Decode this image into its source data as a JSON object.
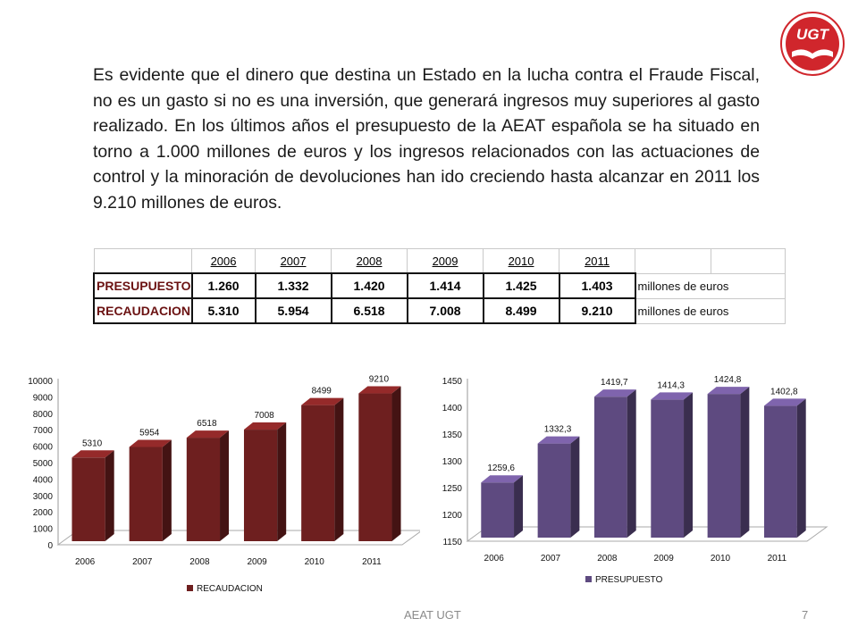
{
  "paragraph": "Es evidente que el dinero que destina un Estado en la lucha contra el Fraude Fiscal, no es un gasto si no es una inversión, que generará ingresos muy superiores al gasto realizado. En los últimos años el presupuesto de la AEAT española se ha situado en torno a 1.000 millones de euros y los ingresos relacionados con las actuaciones de control y la minoración de devoluciones han ido creciendo hasta alcanzar en 2011 los 9.210 millones de euros.",
  "logo_text": "UGT",
  "table": {
    "years": [
      "2006",
      "2007",
      "2008",
      "2009",
      "2010",
      "2011"
    ],
    "rows": [
      {
        "label": "PRESUPUESTO",
        "values": [
          "1.260",
          "1.332",
          "1.420",
          "1.414",
          "1.425",
          "1.403"
        ],
        "unit": "millones de euros"
      },
      {
        "label": "RECAUDACION",
        "values": [
          "5.310",
          "5.954",
          "6.518",
          "7.008",
          "8.499",
          "9.210"
        ],
        "unit": "millones de euros"
      }
    ]
  },
  "colors": {
    "recaudacion": "#6e1f1f",
    "presupuesto": "#5e4a80",
    "logo": "#d0262c"
  },
  "footer": {
    "center": "AEAT UGT",
    "page": "7"
  },
  "chart_data": [
    {
      "type": "bar",
      "categories": [
        "2006",
        "2007",
        "2008",
        "2009",
        "2010",
        "2011"
      ],
      "series": [
        {
          "name": "RECAUDACION",
          "values": [
            5310,
            5954,
            6518,
            7008,
            8499,
            9210
          ]
        }
      ],
      "data_labels": [
        "5310",
        "5954",
        "6518",
        "7008",
        "8499",
        "9210"
      ],
      "ylim": [
        0,
        10000
      ],
      "yticks": [
        "10000",
        "9000",
        "8000",
        "7000",
        "6000",
        "5000",
        "4000",
        "3000",
        "2000",
        "1000",
        "0"
      ],
      "grid": false,
      "legend": "bottom",
      "style": "3d-column"
    },
    {
      "type": "bar",
      "categories": [
        "2006",
        "2007",
        "2008",
        "2009",
        "2010",
        "2011"
      ],
      "series": [
        {
          "name": "PRESUPUESTO",
          "values": [
            1259.6,
            1332.3,
            1419.7,
            1414.3,
            1424.8,
            1402.8
          ]
        }
      ],
      "data_labels": [
        "1259,6",
        "1332,3",
        "1419,7",
        "1414,3",
        "1424,8",
        "1402,8"
      ],
      "ylim": [
        1150,
        1450
      ],
      "yticks": [
        "1450",
        "1400",
        "1350",
        "1300",
        "1250",
        "1200",
        "1150"
      ],
      "grid": false,
      "legend": "bottom",
      "style": "3d-column"
    }
  ]
}
